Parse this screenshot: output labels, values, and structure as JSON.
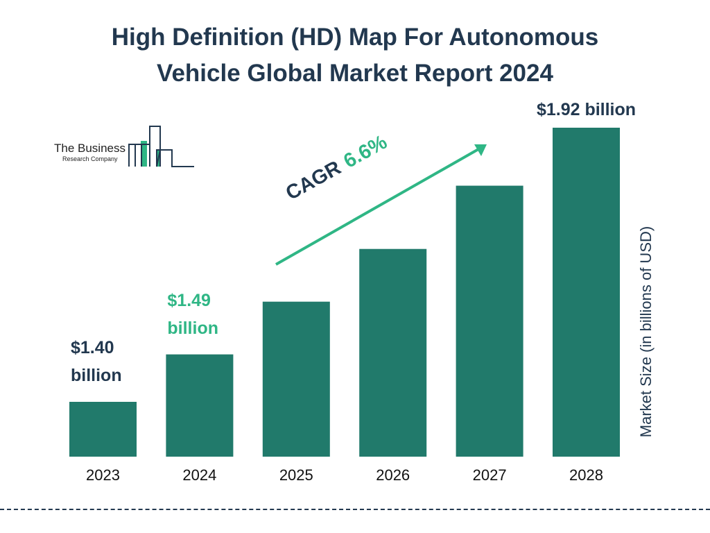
{
  "chart_data": {
    "type": "bar",
    "title": "High Definition (HD) Map For Autonomous Vehicle Global Market Report 2024",
    "categories": [
      "2023",
      "2024",
      "2025",
      "2026",
      "2027",
      "2028"
    ],
    "values": [
      1.4,
      1.49,
      1.59,
      1.69,
      1.81,
      1.92
    ],
    "data_labels": [
      "$1.40 billion",
      "$1.49 billion",
      "",
      "",
      "",
      "$1.92 billion"
    ],
    "ylabel": "Market Size (in billions of USD)",
    "xlabel": "",
    "grid": false,
    "annotation": {
      "label": "CAGR",
      "value": "6.6%"
    },
    "colors": {
      "bar": "#217a6b",
      "text": "#22384f",
      "highlight": "#2fb685"
    }
  },
  "logo": {
    "line1": "The Business",
    "line2": "Research Company"
  }
}
